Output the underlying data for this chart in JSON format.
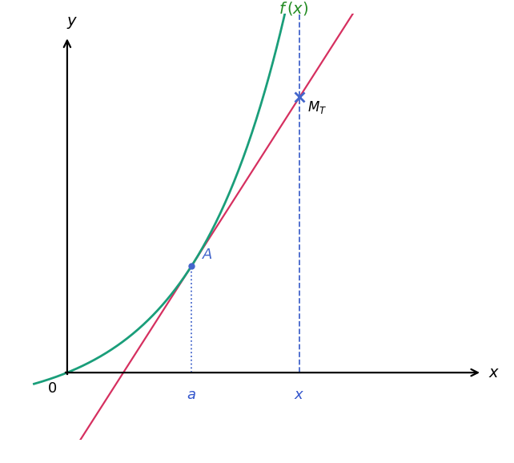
{
  "background_color": "#ffffff",
  "curve_color": "#1a9e7a",
  "tangent_color": "#d63060",
  "point_color": "#4466cc",
  "label_color_green": "#228B22",
  "label_color_red": "#cc2222",
  "label_color_blue": "#3355cc",
  "a_val": 1.5,
  "x_val": 2.8,
  "xlim": [
    -0.5,
    5.2
  ],
  "ylim": [
    -0.9,
    4.8
  ],
  "figsize": [
    6.42,
    5.78
  ],
  "dpi": 100
}
